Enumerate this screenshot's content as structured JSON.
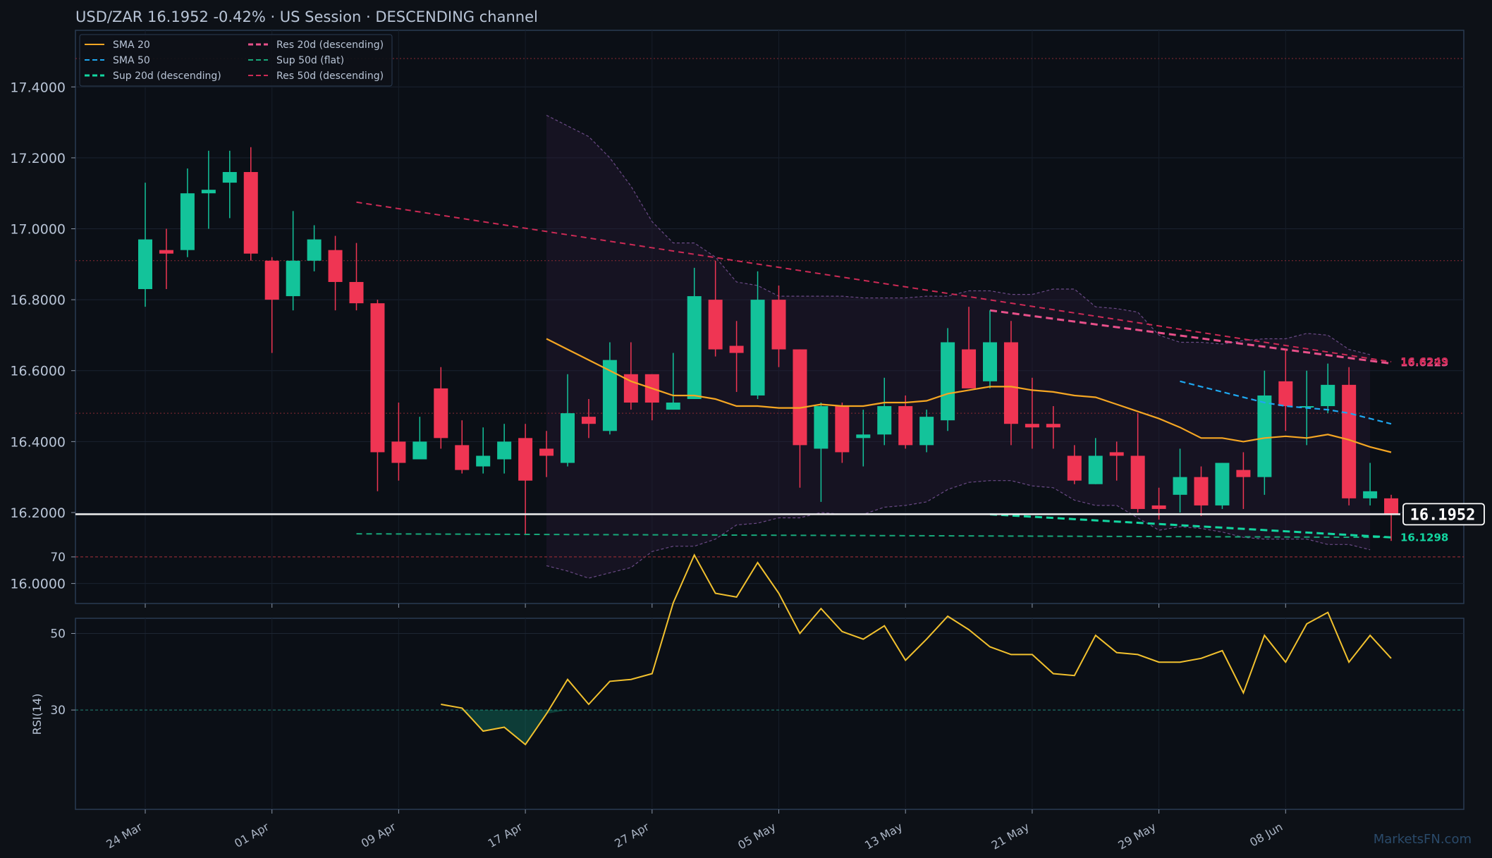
{
  "header": {
    "title": "USD/ZAR   16.1952   -0.42%  ·  US Session  ·  DESCENDING channel"
  },
  "watermark": "MarketsFN.com",
  "colors": {
    "background": "#0d1117",
    "up": "#13c39a",
    "down": "#ef3553",
    "sma20": "#f5a623",
    "sma50": "#1ea7f0",
    "res20": "#e8508a",
    "sup20": "#12d6a0",
    "sup50": "#17a87a",
    "res50": "#cc2a55",
    "rsi": "#f2c12e"
  },
  "chart_data": [
    {
      "type": "candlestick",
      "title": "USD/ZAR",
      "ylim": [
        15.95,
        17.55
      ],
      "y_ticks": [
        "16.0000",
        "16.2000",
        "16.4000",
        "16.6000",
        "16.8000",
        "17.0000",
        "17.2000",
        "17.4000"
      ],
      "y_tick_values": [
        16.0,
        16.2,
        16.4,
        16.6,
        16.8,
        17.0,
        17.2,
        17.4
      ],
      "x_tick_labels": [
        "24 Mar",
        "01 Apr",
        "09 Apr",
        "17 Apr",
        "27 Apr",
        "05 May",
        "13 May",
        "21 May",
        "29 May",
        "08 Jun"
      ],
      "x_tick_index": [
        0,
        6,
        12,
        18,
        24,
        30,
        36,
        42,
        48,
        54
      ],
      "grid": true,
      "legend_position": "top-left",
      "legend": [
        {
          "label": "SMA 20",
          "color": "#f5a623",
          "dash": "solid"
        },
        {
          "label": "SMA 50",
          "color": "#1ea7f0",
          "dash": "dashed"
        },
        {
          "label": "Sup 20d (descending)",
          "color": "#12d6a0",
          "dash": "dashed"
        },
        {
          "label": "Res 20d (descending)",
          "color": "#e8508a",
          "dash": "dashed"
        },
        {
          "label": "Sup 50d (flat)",
          "color": "#17a87a",
          "dash": "dashed"
        },
        {
          "label": "Res 50d (descending)",
          "color": "#cc2a55",
          "dash": "dashed"
        }
      ],
      "candles": [
        {
          "o": 16.83,
          "h": 17.13,
          "l": 16.78,
          "c": 16.97
        },
        {
          "o": 16.94,
          "h": 17.0,
          "l": 16.83,
          "c": 16.93
        },
        {
          "o": 16.94,
          "h": 17.17,
          "l": 16.92,
          "c": 17.1
        },
        {
          "o": 17.1,
          "h": 17.22,
          "l": 17.0,
          "c": 17.11
        },
        {
          "o": 17.13,
          "h": 17.22,
          "l": 17.03,
          "c": 17.16
        },
        {
          "o": 17.16,
          "h": 17.23,
          "l": 16.91,
          "c": 16.93
        },
        {
          "o": 16.91,
          "h": 16.92,
          "l": 16.65,
          "c": 16.8
        },
        {
          "o": 16.81,
          "h": 17.05,
          "l": 16.77,
          "c": 16.91
        },
        {
          "o": 16.91,
          "h": 17.01,
          "l": 16.88,
          "c": 16.97
        },
        {
          "o": 16.94,
          "h": 16.98,
          "l": 16.77,
          "c": 16.85
        },
        {
          "o": 16.85,
          "h": 16.96,
          "l": 16.77,
          "c": 16.79
        },
        {
          "o": 16.79,
          "h": 16.8,
          "l": 16.26,
          "c": 16.37
        },
        {
          "o": 16.4,
          "h": 16.51,
          "l": 16.29,
          "c": 16.34
        },
        {
          "o": 16.35,
          "h": 16.47,
          "l": 16.35,
          "c": 16.4
        },
        {
          "o": 16.55,
          "h": 16.61,
          "l": 16.38,
          "c": 16.41
        },
        {
          "o": 16.39,
          "h": 16.46,
          "l": 16.31,
          "c": 16.32
        },
        {
          "o": 16.33,
          "h": 16.44,
          "l": 16.31,
          "c": 16.36
        },
        {
          "o": 16.35,
          "h": 16.45,
          "l": 16.31,
          "c": 16.4
        },
        {
          "o": 16.41,
          "h": 16.45,
          "l": 16.14,
          "c": 16.29
        },
        {
          "o": 16.38,
          "h": 16.43,
          "l": 16.3,
          "c": 16.36
        },
        {
          "o": 16.34,
          "h": 16.59,
          "l": 16.33,
          "c": 16.48
        },
        {
          "o": 16.47,
          "h": 16.52,
          "l": 16.41,
          "c": 16.45
        },
        {
          "o": 16.43,
          "h": 16.68,
          "l": 16.42,
          "c": 16.63
        },
        {
          "o": 16.59,
          "h": 16.68,
          "l": 16.49,
          "c": 16.51
        },
        {
          "o": 16.59,
          "h": 16.59,
          "l": 16.46,
          "c": 16.51
        },
        {
          "o": 16.49,
          "h": 16.65,
          "l": 16.49,
          "c": 16.51
        },
        {
          "o": 16.52,
          "h": 16.89,
          "l": 16.52,
          "c": 16.81
        },
        {
          "o": 16.8,
          "h": 16.91,
          "l": 16.64,
          "c": 16.66
        },
        {
          "o": 16.67,
          "h": 16.74,
          "l": 16.54,
          "c": 16.65
        },
        {
          "o": 16.53,
          "h": 16.88,
          "l": 16.52,
          "c": 16.8
        },
        {
          "o": 16.8,
          "h": 16.84,
          "l": 16.61,
          "c": 16.66
        },
        {
          "o": 16.66,
          "h": 16.66,
          "l": 16.27,
          "c": 16.39
        },
        {
          "o": 16.38,
          "h": 16.51,
          "l": 16.23,
          "c": 16.5
        },
        {
          "o": 16.5,
          "h": 16.51,
          "l": 16.34,
          "c": 16.37
        },
        {
          "o": 16.41,
          "h": 16.49,
          "l": 16.33,
          "c": 16.42
        },
        {
          "o": 16.42,
          "h": 16.58,
          "l": 16.39,
          "c": 16.5
        },
        {
          "o": 16.5,
          "h": 16.53,
          "l": 16.38,
          "c": 16.39
        },
        {
          "o": 16.39,
          "h": 16.49,
          "l": 16.37,
          "c": 16.47
        },
        {
          "o": 16.46,
          "h": 16.72,
          "l": 16.43,
          "c": 16.68
        },
        {
          "o": 16.66,
          "h": 16.78,
          "l": 16.55,
          "c": 16.55
        },
        {
          "o": 16.57,
          "h": 16.77,
          "l": 16.55,
          "c": 16.68
        },
        {
          "o": 16.68,
          "h": 16.74,
          "l": 16.39,
          "c": 16.45
        },
        {
          "o": 16.45,
          "h": 16.58,
          "l": 16.38,
          "c": 16.44
        },
        {
          "o": 16.45,
          "h": 16.5,
          "l": 16.38,
          "c": 16.44
        },
        {
          "o": 16.36,
          "h": 16.39,
          "l": 16.28,
          "c": 16.29
        },
        {
          "o": 16.28,
          "h": 16.41,
          "l": 16.28,
          "c": 16.36
        },
        {
          "o": 16.37,
          "h": 16.4,
          "l": 16.29,
          "c": 16.36
        },
        {
          "o": 16.36,
          "h": 16.48,
          "l": 16.2,
          "c": 16.21
        },
        {
          "o": 16.22,
          "h": 16.27,
          "l": 16.18,
          "c": 16.21
        },
        {
          "o": 16.25,
          "h": 16.38,
          "l": 16.2,
          "c": 16.3
        },
        {
          "o": 16.3,
          "h": 16.33,
          "l": 16.19,
          "c": 16.22
        },
        {
          "o": 16.22,
          "h": 16.34,
          "l": 16.21,
          "c": 16.34
        },
        {
          "o": 16.32,
          "h": 16.37,
          "l": 16.21,
          "c": 16.3
        },
        {
          "o": 16.3,
          "h": 16.6,
          "l": 16.25,
          "c": 16.53
        },
        {
          "o": 16.57,
          "h": 16.66,
          "l": 16.43,
          "c": 16.5
        },
        {
          "o": 16.5,
          "h": 16.6,
          "l": 16.39,
          "c": 16.5
        },
        {
          "o": 16.5,
          "h": 16.62,
          "l": 16.48,
          "c": 16.56
        },
        {
          "o": 16.56,
          "h": 16.61,
          "l": 16.22,
          "c": 16.24
        },
        {
          "o": 16.24,
          "h": 16.34,
          "l": 16.22,
          "c": 16.26
        },
        {
          "o": 16.24,
          "h": 16.25,
          "l": 16.12,
          "c": 16.1952
        }
      ],
      "sma20": {
        "start": 19,
        "values": [
          16.69,
          16.66,
          16.63,
          16.6,
          16.57,
          16.55,
          16.53,
          16.53,
          16.52,
          16.5,
          16.5,
          16.495,
          16.495,
          16.505,
          16.5,
          16.5,
          16.51,
          16.51,
          16.515,
          16.535,
          16.545,
          16.555,
          16.555,
          16.545,
          16.54,
          16.53,
          16.525,
          16.505,
          16.485,
          16.465,
          16.44,
          16.41,
          16.41,
          16.4,
          16.41,
          16.415,
          16.41,
          16.42,
          16.405,
          16.385,
          16.37
        ]
      },
      "sma50": {
        "start": 49,
        "values": [
          16.57,
          16.555,
          16.54,
          16.525,
          16.51,
          16.5,
          16.495,
          16.49,
          16.48,
          16.465,
          16.45
        ]
      },
      "bands": {
        "start": 19,
        "upper": [
          17.32,
          17.29,
          17.26,
          17.2,
          17.12,
          17.02,
          16.96,
          16.96,
          16.92,
          16.85,
          16.84,
          16.81,
          16.81,
          16.81,
          16.81,
          16.805,
          16.805,
          16.805,
          16.81,
          16.81,
          16.825,
          16.825,
          16.815,
          16.815,
          16.83,
          16.83,
          16.78,
          16.775,
          16.765,
          16.7,
          16.68,
          16.68,
          16.675,
          16.685,
          16.69,
          16.69,
          16.705,
          16.7,
          16.66,
          16.645
        ],
        "lower": [
          16.05,
          16.035,
          16.015,
          16.03,
          16.045,
          16.09,
          16.105,
          16.105,
          16.125,
          16.165,
          16.17,
          16.185,
          16.185,
          16.2,
          16.195,
          16.195,
          16.215,
          16.22,
          16.23,
          16.265,
          16.285,
          16.29,
          16.29,
          16.275,
          16.27,
          16.235,
          16.22,
          16.22,
          16.185,
          16.15,
          16.16,
          16.155,
          16.145,
          16.13,
          16.125,
          16.125,
          16.125,
          16.11,
          16.11,
          16.095
        ]
      },
      "trendlines": [
        {
          "name": "Res 50d (descending)",
          "x0": 10,
          "y0": 17.075,
          "x1": 59,
          "y1": 16.625
        },
        {
          "name": "Sup 50d (flat)",
          "x0": 10,
          "y0": 16.14,
          "x1": 59,
          "y1": 16.13
        },
        {
          "name": "Res 20d (descending)",
          "x0": 40,
          "y0": 16.77,
          "x1": 59,
          "y1": 16.62
        },
        {
          "name": "Sup 20d (descending)",
          "x0": 40,
          "y0": 16.195,
          "x1": 59,
          "y1": 16.13
        }
      ],
      "horizontal_levels": [
        17.48,
        16.91,
        16.48
      ],
      "current_price": 16.1952,
      "current_price_label": "16.1952",
      "right_tags": [
        {
          "text": "16.6223",
          "y": 16.6223,
          "color": "#e8508a"
        },
        {
          "text": "16.6249",
          "y": 16.6249,
          "color": "#cc2a55"
        },
        {
          "text": "16.1298",
          "y": 16.1298,
          "color": "#12d6a0"
        }
      ]
    },
    {
      "type": "line",
      "ylabel": "RSI(14)",
      "ylim": [
        0,
        100
      ],
      "y_ticks": [
        "30",
        "50",
        "70"
      ],
      "y_tick_values": [
        30,
        50,
        70
      ],
      "overbought": 70,
      "oversold": 30,
      "start": 14,
      "values": [
        31.5,
        30.5,
        24.5,
        25.5,
        21,
        29,
        38,
        31.5,
        37.5,
        38,
        39.5,
        58,
        70.5,
        60.5,
        59.5,
        68.5,
        60.5,
        50,
        56.5,
        50.5,
        48.5,
        52,
        43,
        48.5,
        54.5,
        51,
        46.5,
        44.5,
        44.5,
        39.5,
        39,
        49.5,
        45,
        44.5,
        42.5,
        42.5,
        43.5,
        45.5,
        34.5,
        49.5,
        42.5,
        52.5,
        55.5,
        42.5,
        49.5,
        43.5
      ]
    }
  ]
}
